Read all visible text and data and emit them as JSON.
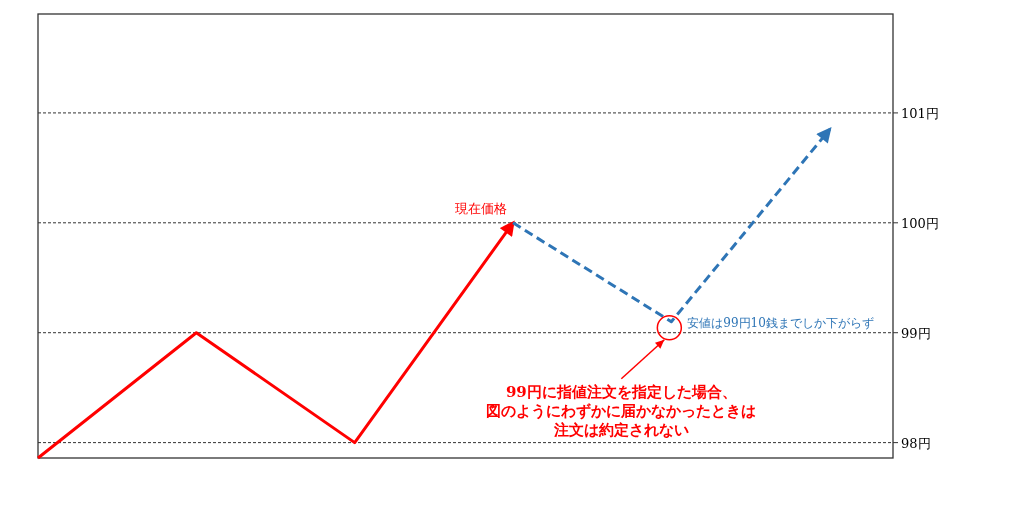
{
  "chart_data": {
    "type": "line",
    "categories": [
      null,
      null,
      null,
      null,
      null,
      null
    ],
    "series": [
      {
        "color": "#ff0000",
        "line_style": "solid",
        "values": [
          97.86,
          99,
          98,
          100,
          null,
          null
        ]
      },
      {
        "color": "#2e75b6",
        "line_style": "dashed",
        "values": [
          null,
          null,
          null,
          100,
          99.1,
          100.85
        ]
      }
    ],
    "ylim": [
      97.86,
      101.9
    ],
    "yticks": [
      {
        "value": 98,
        "label": "98円"
      },
      {
        "value": 99,
        "label": "99円"
      },
      {
        "value": 100,
        "label": "100円"
      },
      {
        "value": 101,
        "label": "101円"
      }
    ],
    "grid": "y",
    "tick_labels": "y",
    "annotations": [
      "現在価格",
      "安値は99円10銭までしか下がらず",
      "99円に指値注文を指定した場合、",
      "図のようにわずかに届かなかったときは",
      "注文は約定されない"
    ]
  }
}
